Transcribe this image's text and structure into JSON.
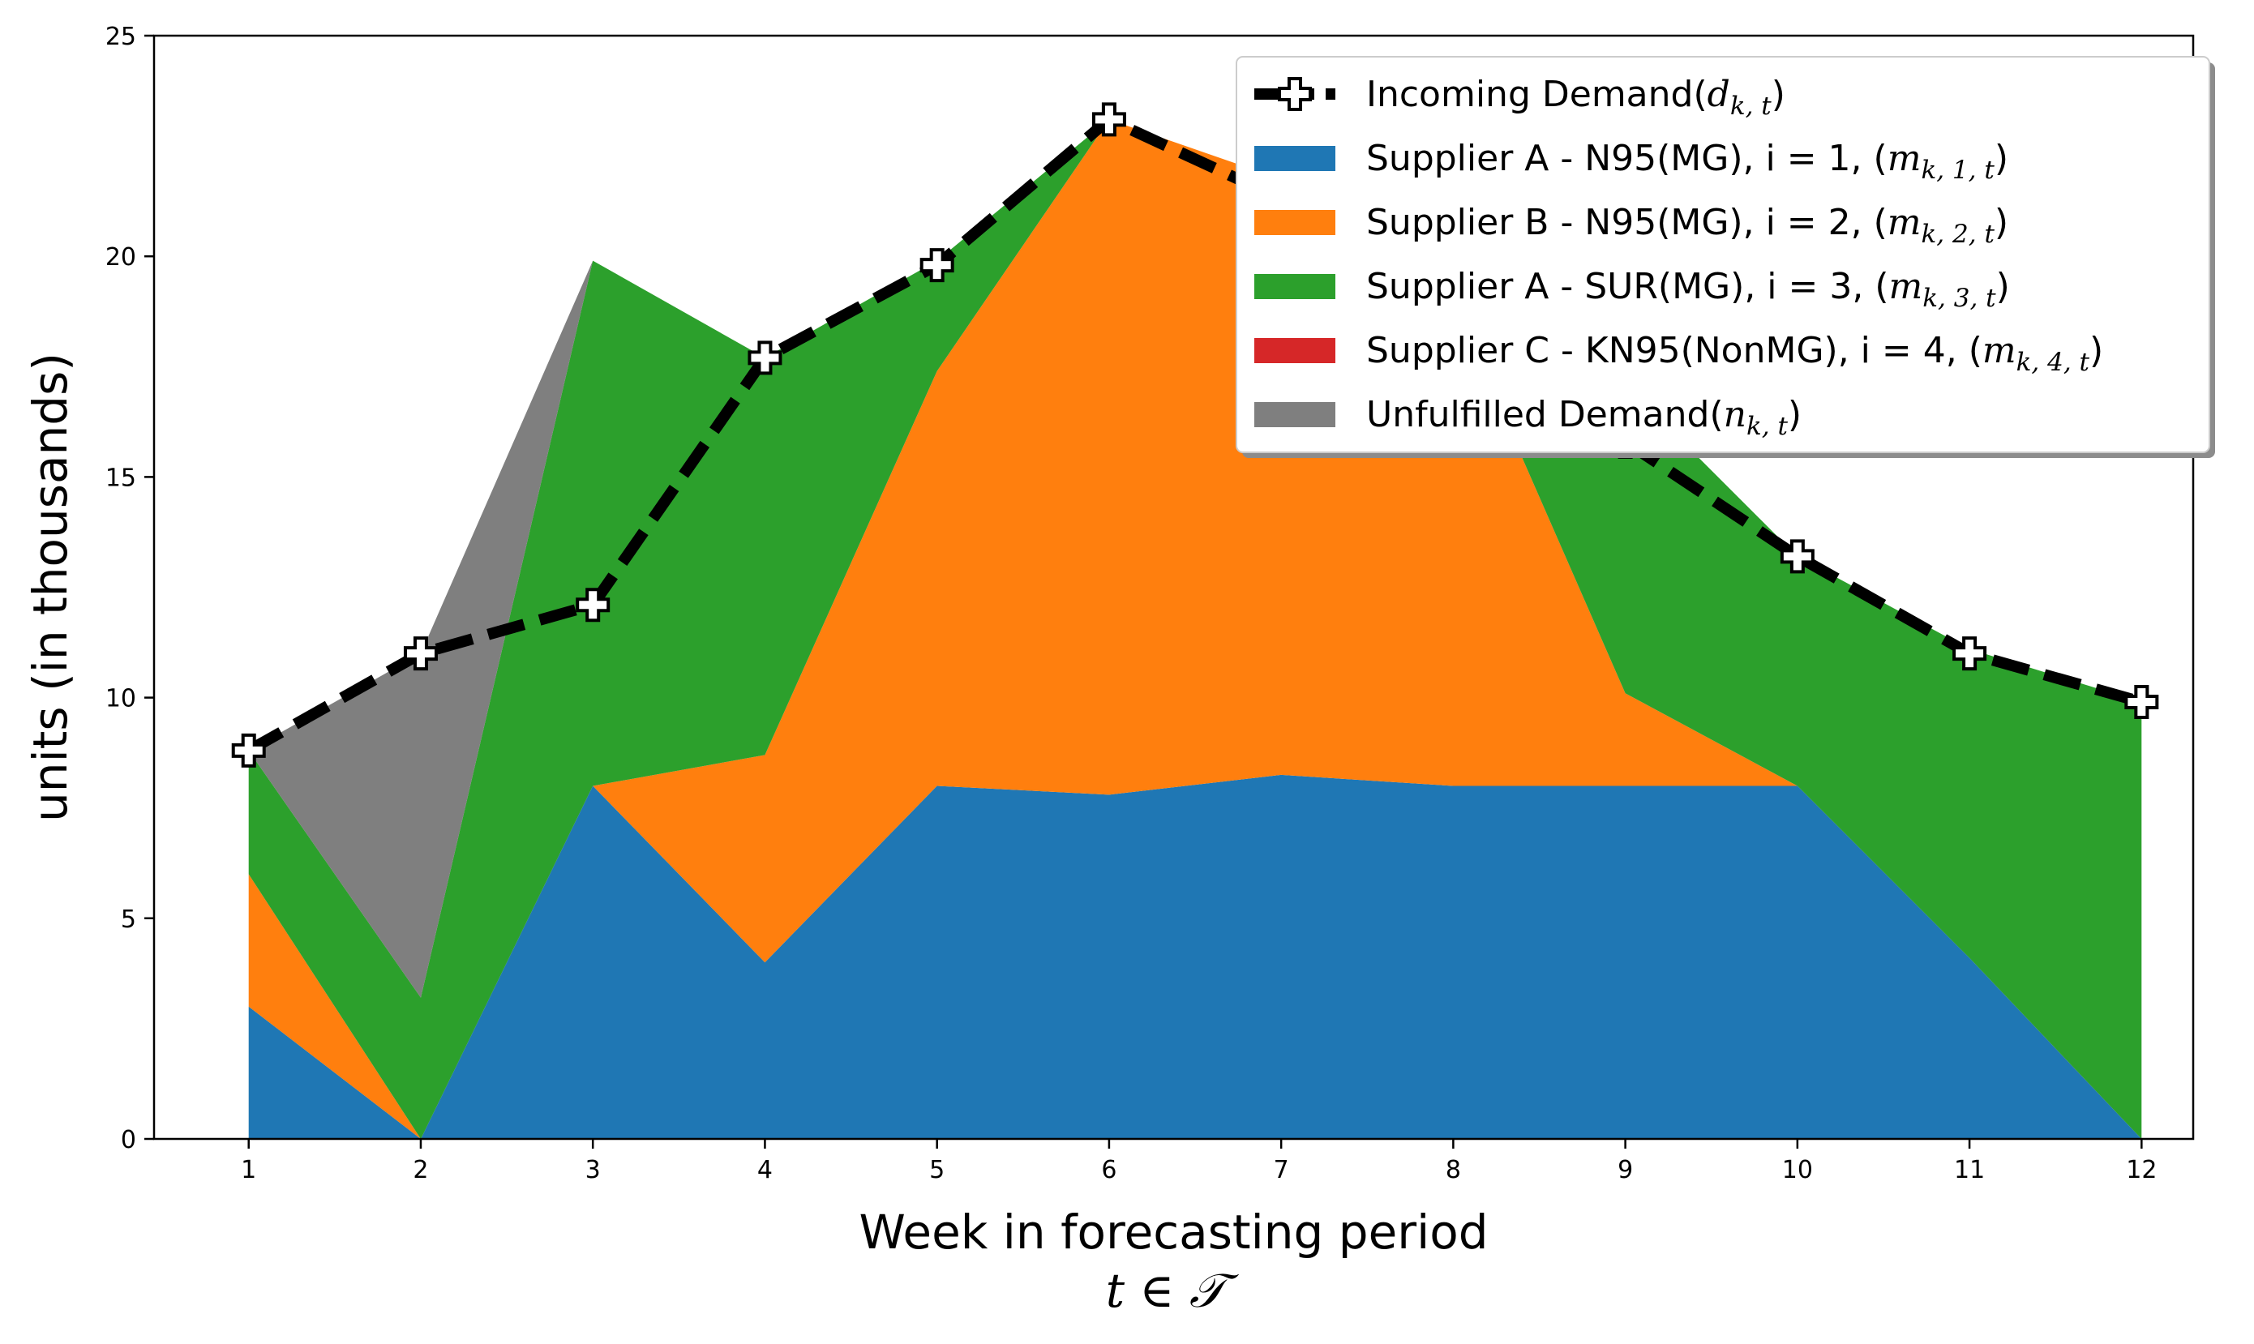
{
  "chart_data": {
    "type": "area",
    "stacked": true,
    "xlabel": "Week in forecasting period",
    "xlabel_math": "t ∈ 𝒯",
    "ylabel": "units (in thousands)",
    "x": [
      1,
      2,
      3,
      4,
      5,
      6,
      7,
      8,
      9,
      10,
      11,
      12
    ],
    "xlim": [
      0.45,
      12.3
    ],
    "ylim": [
      0,
      25
    ],
    "yticks": [
      0,
      5,
      10,
      15,
      20,
      25
    ],
    "grid": false,
    "legend_position": "top-right",
    "series": [
      {
        "key": "supplier_a_n95",
        "name": "Supplier A - N95(MG), i = 1, ",
        "math_base": "m",
        "math_sub": "k, 1, t",
        "color": "#1f77b4",
        "values": [
          3.0,
          0.0,
          8.0,
          4.0,
          8.0,
          7.8,
          8.25,
          8.0,
          8.0,
          8.0,
          4.1,
          0.0
        ]
      },
      {
        "key": "supplier_b_n95",
        "name": "Supplier B - N95(MG), i = 2, ",
        "math_base": "m",
        "math_sub": "k, 2, t",
        "color": "#ff7f0e",
        "values": [
          3.0,
          0.0,
          0.0,
          4.7,
          9.4,
          15.3,
          13.5,
          11.0,
          2.1,
          0.0,
          0.0,
          0.0
        ]
      },
      {
        "key": "supplier_a_sur",
        "name": "Supplier A - SUR(MG), i = 3, ",
        "math_base": "m",
        "math_sub": "k, 3, t",
        "color": "#2ca02c",
        "values": [
          2.8,
          3.2,
          11.9,
          9.0,
          2.5,
          0.0,
          0.0,
          0.0,
          7.0,
          5.2,
          7.0,
          9.9
        ]
      },
      {
        "key": "supplier_c_kn95",
        "name": "Supplier C - KN95(NonMG), i = 4, ",
        "math_base": "m",
        "math_sub": "k, 4, t",
        "color": "#d62728",
        "values": [
          0,
          0,
          0,
          0,
          0,
          0,
          0,
          0,
          0,
          0,
          0,
          0
        ]
      },
      {
        "key": "unfulfilled",
        "name": "Unfulfilled Demand",
        "math_base": "n",
        "math_sub": "k, t",
        "color": "#7f7f7f",
        "values": [
          0.0,
          7.8,
          0.0,
          0.0,
          0.0,
          0.0,
          0.0,
          0.0,
          0.0,
          0.0,
          0.0,
          0.0
        ]
      }
    ],
    "demand_line": {
      "name": "Incoming Demand",
      "math_base": "d",
      "math_sub": "k, t",
      "color": "#000000",
      "values": [
        8.8,
        11.0,
        12.1,
        17.7,
        19.8,
        23.1,
        21.3,
        19.2,
        15.8,
        13.2,
        11.0,
        9.9
      ]
    }
  }
}
